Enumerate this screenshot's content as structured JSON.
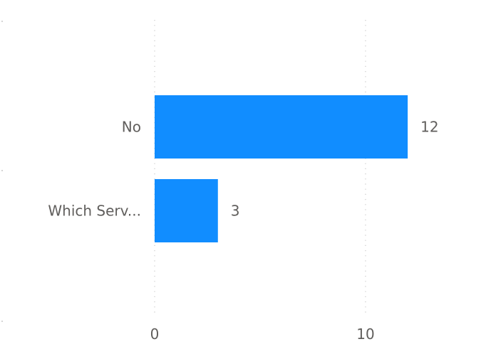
{
  "chart_data": {
    "type": "bar",
    "orientation": "horizontal",
    "categories": [
      "No",
      "Which Serv..."
    ],
    "values": [
      12,
      3
    ],
    "data_labels": [
      "12",
      "3"
    ],
    "x_ticks": [
      0,
      10
    ],
    "x_tick_labels": [
      "0",
      "10"
    ],
    "xlim": [
      0,
      14.8
    ],
    "grid": true,
    "bar_color": "#118dff",
    "title": "",
    "xlabel": "",
    "ylabel": ""
  }
}
